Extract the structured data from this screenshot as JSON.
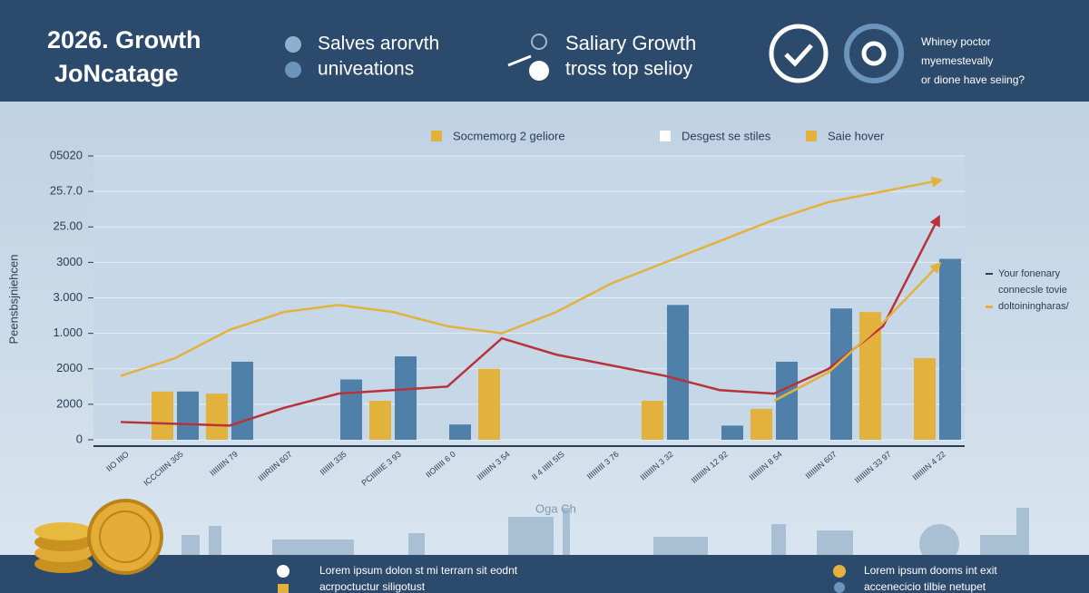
{
  "header": {
    "title_line1": "2026. Growth",
    "title_line2": "JoNcatage",
    "item1": "Salves arorvth",
    "item2": "univeations",
    "item3_title": "Saliary Growth",
    "item3_sub": "tross top selioy",
    "note_line1": "Whiney poctor",
    "note_line2": "myemestevally",
    "note_line3": "or dione have seiing?"
  },
  "chart_data": {
    "type": "bar",
    "ylabel": "Peensbsjniehcen",
    "categories": [
      "IIO IIIO",
      "ICCCIIIN 305",
      "IIIIIIIN 79",
      "IIIIRIIN 607",
      "IIIIIII 335",
      "PCIIIIIIE 3 93",
      "IIOIIIII 6 0",
      "IIIIIIIN 3 54",
      "II 4 IIIII 5IS",
      "IIIIIIIII 3 76",
      "IIIIIIIN 3 32",
      "IIIIIIIN 12 92",
      "IIIIIIIN 8 54",
      "IIIIIIIN 607",
      "IIIIIIIN 33 97",
      "IIIIIIIN 4 22"
    ],
    "series": [
      {
        "name": "Socmemorg 2 geliore",
        "type": "bar",
        "color": "#e3b23c",
        "values": [
          null,
          1.36,
          1.3,
          null,
          null,
          1.1,
          null,
          2.0,
          null,
          null,
          1.1,
          null,
          0.87,
          null,
          3.6,
          2.3
        ]
      },
      {
        "name": "Desgest se stiles",
        "type": "bar",
        "color": "#4e80aa",
        "values": [
          null,
          1.36,
          2.2,
          null,
          1.7,
          2.35,
          0.43,
          null,
          null,
          null,
          3.8,
          0.4,
          2.2,
          3.7,
          null,
          5.1
        ]
      },
      {
        "name": "Saie hover",
        "type": "line",
        "color": "#e3b23c",
        "values": [
          1.8,
          2.3,
          3.1,
          3.6,
          3.8,
          3.6,
          3.2,
          3.0,
          3.6,
          4.4,
          5.0,
          5.6,
          6.2,
          6.7,
          7.0,
          7.3
        ]
      },
      {
        "type": "line",
        "color": "#b8323a",
        "values": [
          0.5,
          0.45,
          0.4,
          0.9,
          1.3,
          1.4,
          1.5,
          2.86,
          2.4,
          2.1,
          1.8,
          1.4,
          1.3,
          2.0,
          3.2,
          6.2
        ]
      },
      {
        "type": "line",
        "color": "#e3b23c",
        "values": [
          null,
          null,
          null,
          null,
          null,
          null,
          null,
          null,
          null,
          null,
          null,
          null,
          1.1,
          1.9,
          3.3,
          4.9
        ]
      }
    ],
    "ylim": [
      0,
      8
    ],
    "yticks": [
      {
        "value": 0,
        "label": "0"
      },
      {
        "value": 1,
        "label": "2000"
      },
      {
        "value": 2,
        "label": "2000"
      },
      {
        "value": 3,
        "label": "1.000"
      },
      {
        "value": 4,
        "label": "3.000"
      },
      {
        "value": 5,
        "label": "3000"
      },
      {
        "value": 6,
        "label": "25.00"
      },
      {
        "value": 7,
        "label": "25.7.0"
      },
      {
        "value": 8,
        "label": "05020"
      }
    ],
    "grid": true,
    "annotations": [
      "Your fonenary",
      "connecsle tovie",
      "doltoiningharas/"
    ]
  },
  "skyline_label": "Oga Ch",
  "footer": {
    "left_line1": "Lorem ipsum dolon st mi terrarn sit eodnt",
    "left_line2": "acrpoctuctur siligotust",
    "right_line1": "Lorem ipsum dooms int exit",
    "right_line2": "accenecicio tilbie netupet"
  }
}
